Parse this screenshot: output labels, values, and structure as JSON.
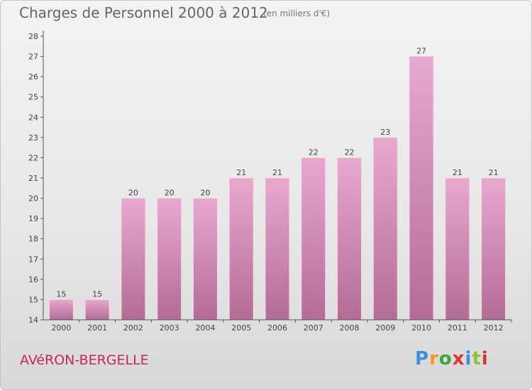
{
  "title": "Charges de Personnel 2000 à 2012",
  "subtitle": "(en milliers d'€)",
  "place": "AVéRON-BERGELLE",
  "logo": {
    "text": "Proxiti",
    "letter_colors": [
      "#3b8fd6",
      "#f29a1f",
      "#3aa53a",
      "#e0342a",
      "#3b8fd6",
      "#8bc43f",
      "#e0342a"
    ]
  },
  "colors": {
    "bar_top": "#e8a9cf",
    "bar_bottom": "#b36c95",
    "axis": "#555555",
    "place_text": "#c8284e"
  },
  "chart_data": {
    "type": "bar",
    "categories": [
      "2000",
      "2001",
      "2002",
      "2003",
      "2004",
      "2005",
      "2006",
      "2007",
      "2008",
      "2009",
      "2010",
      "2011",
      "2012"
    ],
    "values": [
      15,
      15,
      20,
      20,
      20,
      21,
      21,
      22,
      22,
      23,
      27,
      21,
      21
    ],
    "data_labels": [
      "15",
      "15",
      "20",
      "20",
      "20",
      "21",
      "21",
      "22",
      "22",
      "23",
      "27",
      "21",
      "21"
    ],
    "title": "Charges de Personnel 2000 à 2012",
    "subtitle": "(en milliers d'€)",
    "xlabel": "",
    "ylabel": "",
    "ylim": [
      14,
      28
    ],
    "yticks": [
      14,
      15,
      16,
      17,
      18,
      19,
      20,
      21,
      22,
      23,
      24,
      25,
      26,
      27,
      28
    ],
    "grid": false,
    "legend": "none"
  }
}
